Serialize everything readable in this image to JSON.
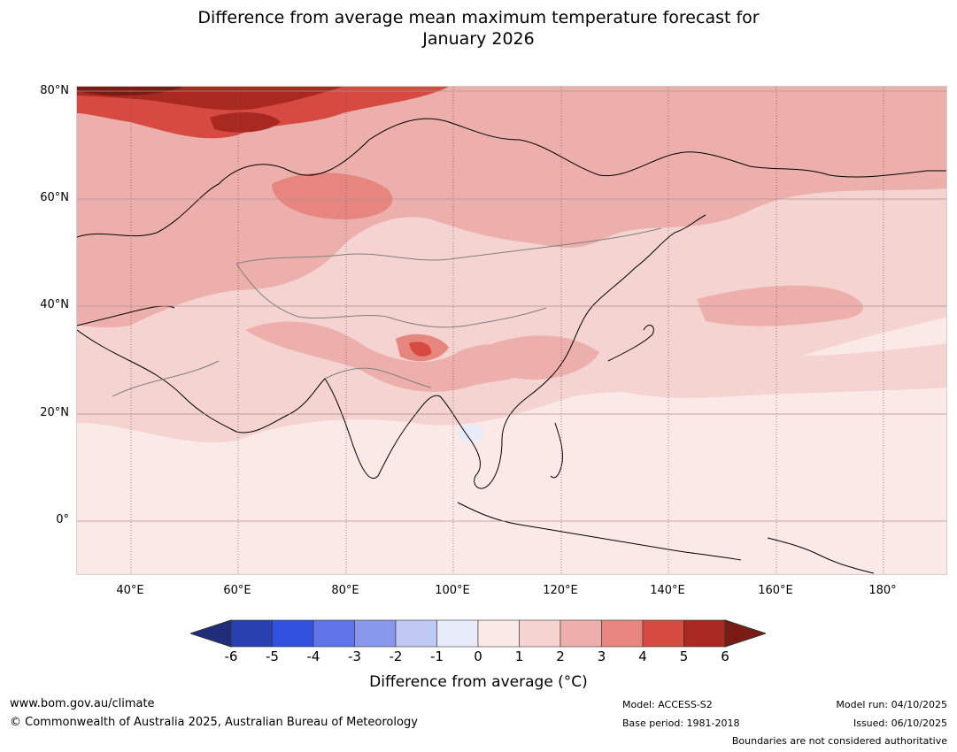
{
  "title": {
    "line1": "Difference from average mean maximum temperature forecast for",
    "line2": "January 2026"
  },
  "map": {
    "latitude_labels": [
      "80°N",
      "60°N",
      "40°N",
      "20°N",
      "0°"
    ],
    "longitude_labels": [
      "40°E",
      "60°E",
      "80°E",
      "100°E",
      "120°E",
      "140°E",
      "160°E",
      "180°"
    ],
    "lon_range": [
      30,
      192
    ],
    "lat_range": [
      -10,
      81
    ]
  },
  "colorbar": {
    "ticks": [
      "-6",
      "-5",
      "-4",
      "-3",
      "-2",
      "-1",
      "0",
      "1",
      "2",
      "3",
      "4",
      "5",
      "6"
    ],
    "colors": [
      "#1f2d7a",
      "#283fb0",
      "#3150e0",
      "#5f74e6",
      "#8797ec",
      "#c0c8f4",
      "#e8ebfa",
      "#fbe9e8",
      "#f4d3d0",
      "#ecafab",
      "#e6867f",
      "#d64a41",
      "#a8291f",
      "#7a1a14"
    ],
    "label": "Difference from average (°C)"
  },
  "footer": {
    "website": "www.bom.gov.au/climate",
    "copyright": "© Commonwealth of Australia 2025, Australian Bureau of Meteorology",
    "model": "Model: ACCESS-S2",
    "base_period": "Base period: 1981-2018",
    "model_run": "Model run: 04/10/2025",
    "issued": "Issued: 06/10/2025",
    "disclaimer": "Boundaries are not considered authoritative"
  }
}
